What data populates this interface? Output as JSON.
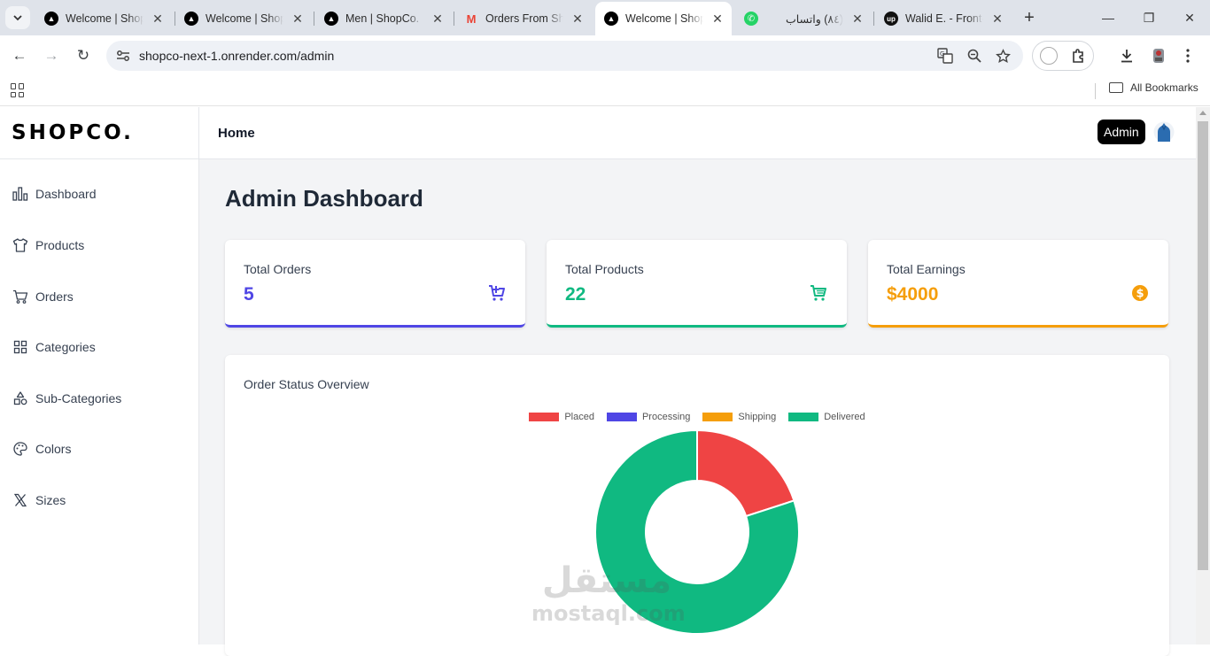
{
  "browser": {
    "tabs": [
      {
        "title": "Welcome | Shopco",
        "icon": "nextjs-icon",
        "active": false
      },
      {
        "title": "Welcome | Shopco",
        "icon": "nextjs-icon",
        "active": false
      },
      {
        "title": "Men | ShopCo.",
        "icon": "nextjs-icon",
        "active": false
      },
      {
        "title": "Orders From Shopco",
        "icon": "gmail-icon",
        "active": false
      },
      {
        "title": "Welcome | Shopco",
        "icon": "nextjs-icon",
        "active": true
      },
      {
        "title": "(٨٤) واتساب",
        "icon": "whatsapp-icon",
        "active": false
      },
      {
        "title": "Walid E. - Front-end",
        "icon": "upwork-icon",
        "active": false
      }
    ],
    "url": "shopco-next-1.onrender.com/admin",
    "bookmarks_label": "All Bookmarks"
  },
  "app": {
    "logo": "SHOPCO.",
    "nav": [
      {
        "label": "Dashboard",
        "icon": "bar-chart-icon"
      },
      {
        "label": "Products",
        "icon": "shirt-icon"
      },
      {
        "label": "Orders",
        "icon": "cart-icon"
      },
      {
        "label": "Categories",
        "icon": "grid-icon"
      },
      {
        "label": "Sub-Categories",
        "icon": "shapes-icon"
      },
      {
        "label": "Colors",
        "icon": "palette-icon"
      },
      {
        "label": "Sizes",
        "icon": "x-icon"
      }
    ],
    "topbar": {
      "home": "Home",
      "admin": "Admin"
    },
    "page_title": "Admin Dashboard",
    "cards": [
      {
        "label": "Total Orders",
        "value": "5",
        "color": "#4f46e5",
        "icon": "cart-plus-icon"
      },
      {
        "label": "Total Products",
        "value": "22",
        "color": "#10b981",
        "icon": "cart-icon"
      },
      {
        "label": "Total Earnings",
        "value": "$4000",
        "color": "#f59e0b",
        "icon": "dollar-coin-icon"
      }
    ],
    "chart_title": "Order Status Overview"
  },
  "chart_data": {
    "type": "pie",
    "categories": [
      "Placed",
      "Processing",
      "Shipping",
      "Delivered"
    ],
    "values": [
      1,
      0,
      0,
      4
    ],
    "colors": [
      "#ef4444",
      "#4f46e5",
      "#f59e0b",
      "#10b981"
    ],
    "legend": "top"
  },
  "watermark": {
    "ar": "مستقل",
    "en": "mostaql.com"
  }
}
